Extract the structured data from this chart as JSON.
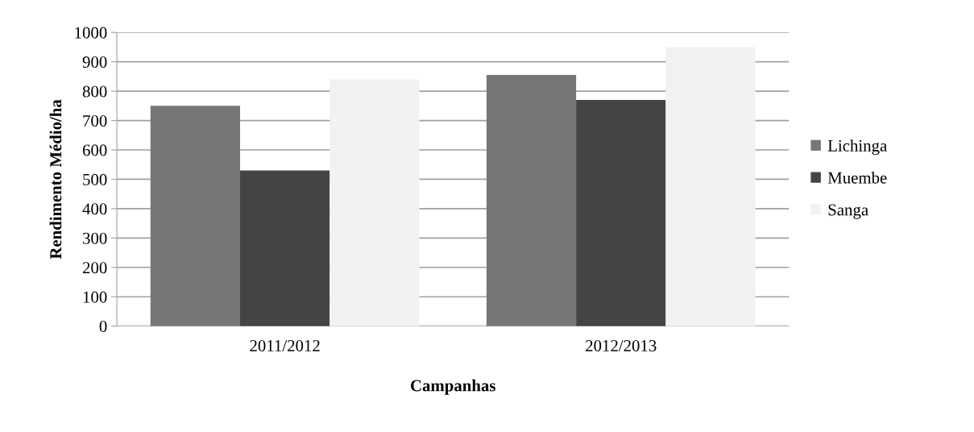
{
  "chart_data": {
    "type": "bar",
    "xlabel": "Campanhas",
    "ylabel": "Rendimento Médio/ha",
    "categories": [
      "2011/2012",
      "2012/2013"
    ],
    "series": [
      {
        "name": "Lichinga",
        "color": "#767676",
        "values": [
          750,
          855
        ]
      },
      {
        "name": "Muembe",
        "color": "#444444",
        "values": [
          530,
          770
        ]
      },
      {
        "name": "Sanga",
        "color": "#f2f2f2",
        "values": [
          840,
          950
        ]
      }
    ],
    "ylim": [
      0,
      1000
    ],
    "yticks": [
      0,
      100,
      200,
      300,
      400,
      500,
      600,
      700,
      800,
      900,
      1000
    ],
    "grid": "y",
    "legend": "right"
  }
}
